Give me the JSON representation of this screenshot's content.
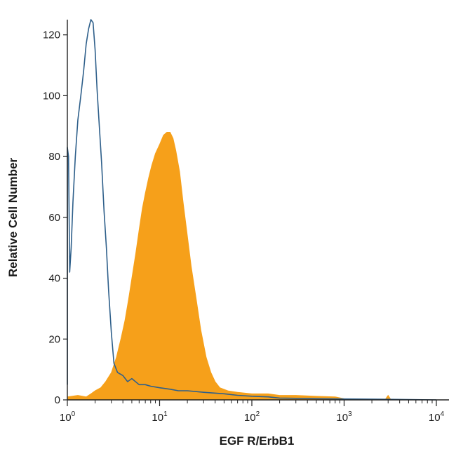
{
  "chart_data": {
    "type": "area",
    "xlabel": "EGF R/ErbB1",
    "ylabel": "Relative Cell Number",
    "xscale": "log",
    "xlim": [
      1,
      10000
    ],
    "ylim": [
      0,
      125
    ],
    "y_ticks": [
      0,
      20,
      40,
      60,
      80,
      100,
      120
    ],
    "x_ticks": [
      {
        "value": 1,
        "base": "10",
        "exp": "0"
      },
      {
        "value": 10,
        "base": "10",
        "exp": "1"
      },
      {
        "value": 100,
        "base": "10",
        "exp": "2"
      },
      {
        "value": 1000,
        "base": "10",
        "exp": "3"
      },
      {
        "value": 10000,
        "base": "10",
        "exp": "4"
      }
    ],
    "grid": false,
    "legend": "none",
    "series": [
      {
        "style": "outline",
        "color": "#2e5f8a",
        "points": [
          [
            1.0,
            5
          ],
          [
            1.0,
            83
          ],
          [
            1.03,
            80
          ],
          [
            1.06,
            42
          ],
          [
            1.1,
            50
          ],
          [
            1.15,
            65
          ],
          [
            1.22,
            80
          ],
          [
            1.3,
            92
          ],
          [
            1.4,
            100
          ],
          [
            1.5,
            108
          ],
          [
            1.6,
            117
          ],
          [
            1.7,
            122
          ],
          [
            1.8,
            125
          ],
          [
            1.9,
            124
          ],
          [
            2.0,
            115
          ],
          [
            2.1,
            102
          ],
          [
            2.2,
            92
          ],
          [
            2.35,
            78
          ],
          [
            2.5,
            62
          ],
          [
            2.65,
            50
          ],
          [
            2.8,
            36
          ],
          [
            3.0,
            22
          ],
          [
            3.2,
            12
          ],
          [
            3.5,
            9
          ],
          [
            4.0,
            8
          ],
          [
            4.5,
            6
          ],
          [
            5.0,
            7
          ],
          [
            6.0,
            5
          ],
          [
            7.0,
            5
          ],
          [
            8.0,
            4.5
          ],
          [
            10,
            4
          ],
          [
            13,
            3.5
          ],
          [
            16,
            3
          ],
          [
            20,
            3
          ],
          [
            30,
            2.5
          ],
          [
            50,
            2
          ],
          [
            70,
            1.5
          ],
          [
            100,
            1.2
          ],
          [
            150,
            1
          ],
          [
            200,
            0.6
          ],
          [
            300,
            0.5
          ],
          [
            500,
            0.4
          ],
          [
            1000,
            0.3
          ],
          [
            3000,
            0.2
          ],
          [
            10000,
            0
          ]
        ]
      },
      {
        "style": "filled",
        "color": "#f6a01a",
        "points": [
          [
            1.0,
            1
          ],
          [
            1.3,
            1.5
          ],
          [
            1.6,
            1
          ],
          [
            1.8,
            2
          ],
          [
            2.0,
            3
          ],
          [
            2.3,
            4
          ],
          [
            2.6,
            6
          ],
          [
            3.0,
            9
          ],
          [
            3.4,
            14
          ],
          [
            3.8,
            20
          ],
          [
            4.2,
            26
          ],
          [
            4.6,
            33
          ],
          [
            5.0,
            40
          ],
          [
            5.5,
            48
          ],
          [
            6.0,
            56
          ],
          [
            6.5,
            63
          ],
          [
            7.0,
            68
          ],
          [
            7.6,
            73
          ],
          [
            8.2,
            77
          ],
          [
            9.0,
            81
          ],
          [
            10.0,
            84
          ],
          [
            11.0,
            87
          ],
          [
            12.0,
            88
          ],
          [
            13.0,
            88
          ],
          [
            14.0,
            86
          ],
          [
            15.0,
            82
          ],
          [
            16.5,
            75
          ],
          [
            18.0,
            65
          ],
          [
            20.0,
            54
          ],
          [
            22.0,
            44
          ],
          [
            25.0,
            33
          ],
          [
            28.0,
            23
          ],
          [
            32.0,
            14
          ],
          [
            36.0,
            9
          ],
          [
            40.0,
            6
          ],
          [
            45.0,
            4
          ],
          [
            55.0,
            3
          ],
          [
            70.0,
            2.5
          ],
          [
            100,
            2
          ],
          [
            150,
            2
          ],
          [
            200,
            1.5
          ],
          [
            300,
            1.5
          ],
          [
            500,
            1.2
          ],
          [
            800,
            1
          ],
          [
            1000,
            0.4
          ],
          [
            2000,
            0.2
          ],
          [
            2800,
            0.2
          ],
          [
            3000,
            1.5
          ],
          [
            3200,
            0.2
          ],
          [
            10000,
            0
          ]
        ]
      }
    ]
  }
}
